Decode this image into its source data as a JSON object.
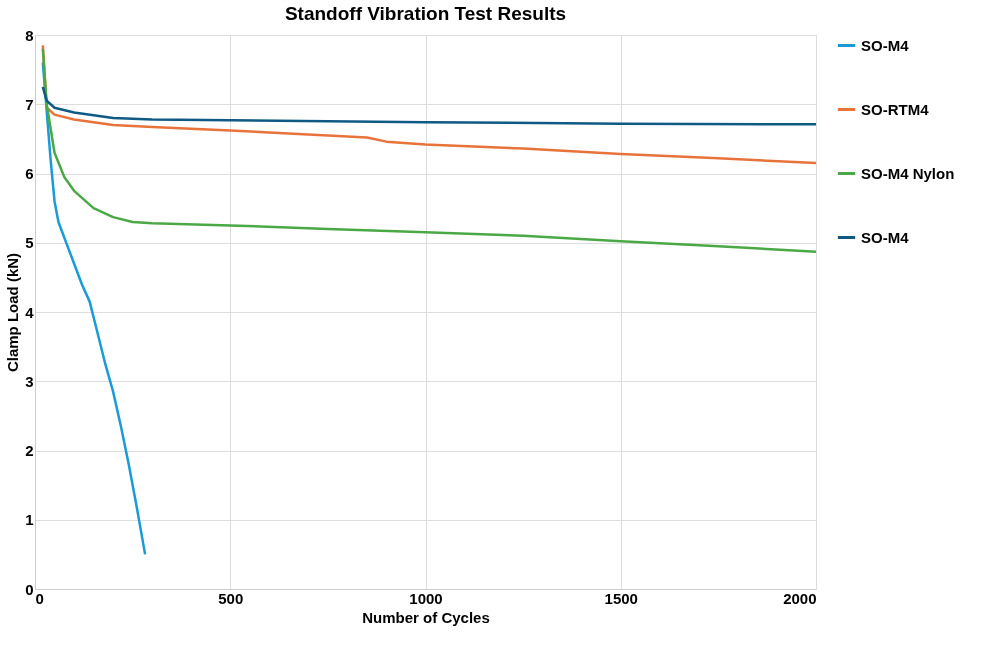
{
  "chart_data": {
    "type": "line",
    "title": "Standoff Vibration Test Results",
    "xlabel": "Number of Cycles",
    "ylabel": "Clamp Load (kN)",
    "xlim": [
      0,
      2000
    ],
    "xticks": [
      0,
      500,
      1000,
      1500,
      2000
    ],
    "ylim": [
      0,
      8
    ],
    "yticks": [
      0,
      1,
      2,
      3,
      4,
      5,
      6,
      7,
      8
    ],
    "grid": true,
    "legend": "right",
    "marker": "none",
    "line_style": "solid",
    "series": [
      {
        "name": "SO-M4",
        "color": "#1a9ad6",
        "x": [
          20,
          30,
          40,
          50,
          60,
          80,
          100,
          120,
          140,
          160,
          180,
          200,
          220,
          240,
          260,
          282
        ],
        "values": [
          7.6,
          6.9,
          6.2,
          5.6,
          5.3,
          5.0,
          4.7,
          4.4,
          4.15,
          3.7,
          3.25,
          2.85,
          2.35,
          1.8,
          1.2,
          0.5
        ]
      },
      {
        "name": "SO-RTM4",
        "color": "#e8733a",
        "x": [
          20,
          30,
          50,
          100,
          200,
          300,
          500,
          750,
          850,
          900,
          1000,
          1250,
          1500,
          1750,
          2000
        ],
        "values": [
          7.85,
          6.95,
          6.85,
          6.78,
          6.7,
          6.67,
          6.62,
          6.55,
          6.52,
          6.46,
          6.42,
          6.36,
          6.28,
          6.22,
          6.15
        ]
      },
      {
        "name": "SO-M4 Nylon",
        "color": "#4aa845",
        "x": [
          20,
          30,
          50,
          75,
          100,
          150,
          200,
          250,
          300,
          500,
          750,
          1000,
          1250,
          1500,
          1750,
          2000
        ],
        "values": [
          7.8,
          7.0,
          6.3,
          5.95,
          5.75,
          5.5,
          5.37,
          5.3,
          5.28,
          5.25,
          5.2,
          5.15,
          5.1,
          5.02,
          4.95,
          4.87
        ]
      },
      {
        "name": "SO-M4",
        "color": "#0f5a85",
        "x": [
          20,
          30,
          50,
          100,
          200,
          300,
          500,
          1000,
          1500,
          2000
        ],
        "values": [
          7.25,
          7.05,
          6.95,
          6.88,
          6.8,
          6.78,
          6.77,
          6.74,
          6.72,
          6.71
        ]
      }
    ]
  }
}
